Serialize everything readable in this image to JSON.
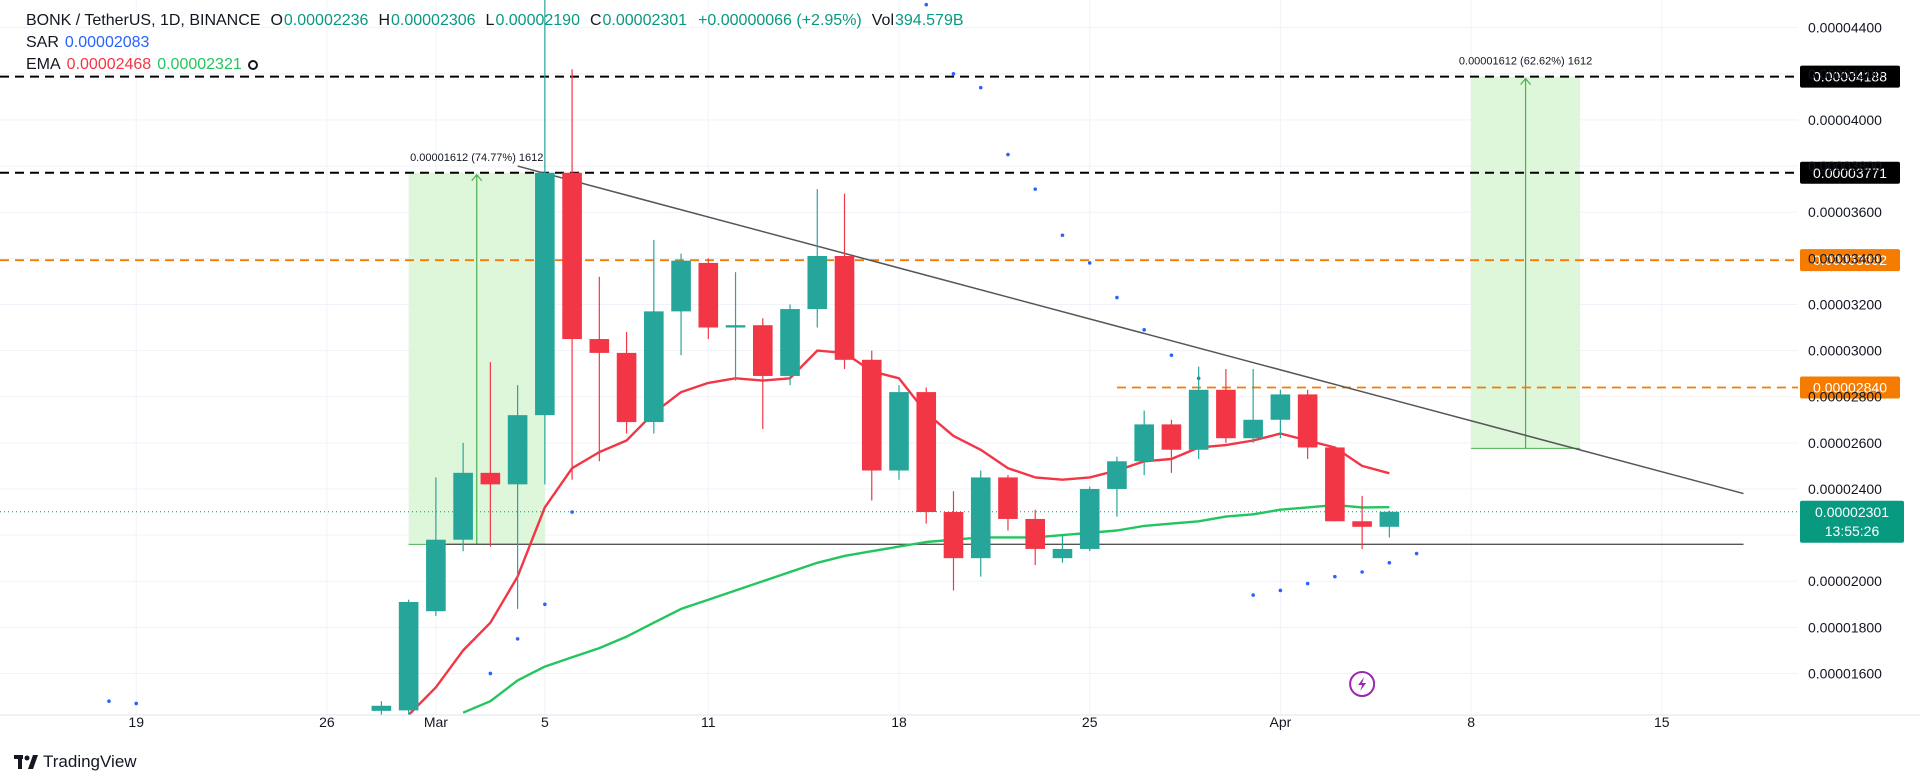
{
  "header": {
    "symbol": "BONK / TetherUS, 1D, BINANCE",
    "open_label": "O",
    "open": "0.00002236",
    "high_label": "H",
    "high": "0.00002306",
    "low_label": "L",
    "low": "0.00002190",
    "close_label": "C",
    "close": "0.00002301",
    "change": "+0.00000066 (+2.95%)",
    "vol_label": "Vol",
    "vol": "394.579B",
    "sar_label": "SAR",
    "sar_value": "0.00002083",
    "ema_label": "EMA",
    "ema1": "0.00002468",
    "ema2": "0.00002321"
  },
  "watermark": "TradingView",
  "colors": {
    "up": "#26a69a",
    "up_dark": "#089981",
    "down": "#f23645",
    "ema_fast": "#f23645",
    "ema_slow": "#22c55e",
    "sar": "#2962ff",
    "level_black": "#000000",
    "level_orange": "#f57c00",
    "range_fill": "#d8f5d3",
    "range_line": "#4caf50",
    "trendline": "#555555"
  },
  "chart_data": {
    "type": "candlestick",
    "y_range": [
      1.42e-05,
      4.52e-05
    ],
    "y_ticks": [
      "0.00001600",
      "0.00001800",
      "0.00002000",
      "0.00002200",
      "0.00002400",
      "0.00002600",
      "0.00002800",
      "0.00003000",
      "0.00003200",
      "0.00003400",
      "0.00003600",
      "0.00003800",
      "0.00004000",
      "0.00004200",
      "0.00004400"
    ],
    "x_range": [
      "2024-02-14",
      "2024-04-20"
    ],
    "x_ticks": [
      {
        "date": "2024-02-19",
        "label": "19"
      },
      {
        "date": "2024-02-26",
        "label": "26"
      },
      {
        "date": "2024-03-01",
        "label": "Mar"
      },
      {
        "date": "2024-03-05",
        "label": "5"
      },
      {
        "date": "2024-03-11",
        "label": "11"
      },
      {
        "date": "2024-03-18",
        "label": "18"
      },
      {
        "date": "2024-03-25",
        "label": "25"
      },
      {
        "date": "2024-04-01",
        "label": "Apr"
      },
      {
        "date": "2024-04-08",
        "label": "8"
      },
      {
        "date": "2024-04-15",
        "label": "15"
      }
    ],
    "candles": [
      {
        "d": "2024-02-28",
        "o": 1.438e-05,
        "h": 1.48e-05,
        "l": 1.42e-05,
        "c": 1.46e-05
      },
      {
        "d": "2024-02-29",
        "o": 1.44e-05,
        "h": 1.92e-05,
        "l": 1.42e-05,
        "c": 1.91e-05
      },
      {
        "d": "2024-03-01",
        "o": 1.87e-05,
        "h": 2.45e-05,
        "l": 1.85e-05,
        "c": 2.18e-05
      },
      {
        "d": "2024-03-02",
        "o": 2.18e-05,
        "h": 2.6e-05,
        "l": 2.13e-05,
        "c": 2.47e-05
      },
      {
        "d": "2024-03-03",
        "o": 2.47e-05,
        "h": 2.95e-05,
        "l": 2.15e-05,
        "c": 2.42e-05
      },
      {
        "d": "2024-03-04",
        "o": 2.42e-05,
        "h": 2.85e-05,
        "l": 1.88e-05,
        "c": 2.72e-05
      },
      {
        "d": "2024-03-05",
        "o": 2.72e-05,
        "h": 4.54e-05,
        "l": 2.42e-05,
        "c": 3.771e-05
      },
      {
        "d": "2024-03-06",
        "o": 3.771e-05,
        "h": 4.22e-05,
        "l": 2.44e-05,
        "c": 3.05e-05
      },
      {
        "d": "2024-03-07",
        "o": 3.05e-05,
        "h": 3.32e-05,
        "l": 2.52e-05,
        "c": 2.99e-05
      },
      {
        "d": "2024-03-08",
        "o": 2.99e-05,
        "h": 3.08e-05,
        "l": 2.64e-05,
        "c": 2.69e-05
      },
      {
        "d": "2024-03-09",
        "o": 2.69e-05,
        "h": 3.48e-05,
        "l": 2.64e-05,
        "c": 3.17e-05
      },
      {
        "d": "2024-03-10",
        "o": 3.17e-05,
        "h": 3.42e-05,
        "l": 2.98e-05,
        "c": 3.39e-05
      },
      {
        "d": "2024-03-11",
        "o": 3.38e-05,
        "h": 3.4e-05,
        "l": 3.05e-05,
        "c": 3.1e-05
      },
      {
        "d": "2024-03-12",
        "o": 3.1e-05,
        "h": 3.34e-05,
        "l": 2.87e-05,
        "c": 3.11e-05
      },
      {
        "d": "2024-03-13",
        "o": 3.11e-05,
        "h": 3.14e-05,
        "l": 2.66e-05,
        "c": 2.89e-05
      },
      {
        "d": "2024-03-14",
        "o": 2.89e-05,
        "h": 3.2e-05,
        "l": 2.85e-05,
        "c": 3.18e-05
      },
      {
        "d": "2024-03-15",
        "o": 3.18e-05,
        "h": 3.7e-05,
        "l": 3.1e-05,
        "c": 3.41e-05
      },
      {
        "d": "2024-03-16",
        "o": 3.41e-05,
        "h": 3.68e-05,
        "l": 2.92e-05,
        "c": 2.96e-05
      },
      {
        "d": "2024-03-17",
        "o": 2.96e-05,
        "h": 3e-05,
        "l": 2.35e-05,
        "c": 2.48e-05
      },
      {
        "d": "2024-03-18",
        "o": 2.48e-05,
        "h": 2.85e-05,
        "l": 2.44e-05,
        "c": 2.82e-05
      },
      {
        "d": "2024-03-19",
        "o": 2.82e-05,
        "h": 2.84e-05,
        "l": 2.25e-05,
        "c": 2.3e-05
      },
      {
        "d": "2024-03-20",
        "o": 2.3e-05,
        "h": 2.39e-05,
        "l": 1.96e-05,
        "c": 2.1e-05
      },
      {
        "d": "2024-03-21",
        "o": 2.1e-05,
        "h": 2.48e-05,
        "l": 2.02e-05,
        "c": 2.45e-05
      },
      {
        "d": "2024-03-22",
        "o": 2.45e-05,
        "h": 2.46e-05,
        "l": 2.22e-05,
        "c": 2.27e-05
      },
      {
        "d": "2024-03-23",
        "o": 2.27e-05,
        "h": 2.31e-05,
        "l": 2.07e-05,
        "c": 2.14e-05
      },
      {
        "d": "2024-03-24",
        "o": 2.1e-05,
        "h": 2.2e-05,
        "l": 2.08e-05,
        "c": 2.14e-05
      },
      {
        "d": "2024-03-25",
        "o": 2.14e-05,
        "h": 2.41e-05,
        "l": 2.13e-05,
        "c": 2.4e-05
      },
      {
        "d": "2024-03-26",
        "o": 2.4e-05,
        "h": 2.54e-05,
        "l": 2.28e-05,
        "c": 2.52e-05
      },
      {
        "d": "2024-03-27",
        "o": 2.52e-05,
        "h": 2.74e-05,
        "l": 2.46e-05,
        "c": 2.68e-05
      },
      {
        "d": "2024-03-28",
        "o": 2.68e-05,
        "h": 2.7e-05,
        "l": 2.47e-05,
        "c": 2.57e-05
      },
      {
        "d": "2024-03-29",
        "o": 2.57e-05,
        "h": 2.93e-05,
        "l": 2.53e-05,
        "c": 2.83e-05
      },
      {
        "d": "2024-03-30",
        "o": 2.83e-05,
        "h": 2.92e-05,
        "l": 2.6e-05,
        "c": 2.62e-05
      },
      {
        "d": "2024-03-31",
        "o": 2.62e-05,
        "h": 2.92e-05,
        "l": 2.6e-05,
        "c": 2.7e-05
      },
      {
        "d": "2024-04-01",
        "o": 2.7e-05,
        "h": 2.83e-05,
        "l": 2.62e-05,
        "c": 2.81e-05
      },
      {
        "d": "2024-04-02",
        "o": 2.81e-05,
        "h": 2.83e-05,
        "l": 2.53e-05,
        "c": 2.58e-05
      },
      {
        "d": "2024-04-03",
        "o": 2.58e-05,
        "h": 2.57e-05,
        "l": 2.26e-05,
        "c": 2.26e-05
      },
      {
        "d": "2024-04-04",
        "o": 2.26e-05,
        "h": 2.37e-05,
        "l": 2.14e-05,
        "c": 2.236e-05
      },
      {
        "d": "2024-04-05",
        "o": 2.236e-05,
        "h": 2.306e-05,
        "l": 2.19e-05,
        "c": 2.301e-05
      }
    ],
    "ema_fast": [
      {
        "d": "2024-02-29",
        "v": 1.42e-05
      },
      {
        "d": "2024-03-01",
        "v": 1.54e-05
      },
      {
        "d": "2024-03-02",
        "v": 1.7e-05
      },
      {
        "d": "2024-03-03",
        "v": 1.82e-05
      },
      {
        "d": "2024-03-04",
        "v": 2.02e-05
      },
      {
        "d": "2024-03-05",
        "v": 2.32e-05
      },
      {
        "d": "2024-03-06",
        "v": 2.49e-05
      },
      {
        "d": "2024-03-07",
        "v": 2.56e-05
      },
      {
        "d": "2024-03-08",
        "v": 2.61e-05
      },
      {
        "d": "2024-03-09",
        "v": 2.73e-05
      },
      {
        "d": "2024-03-10",
        "v": 2.82e-05
      },
      {
        "d": "2024-03-11",
        "v": 2.86e-05
      },
      {
        "d": "2024-03-12",
        "v": 2.88e-05
      },
      {
        "d": "2024-03-13",
        "v": 2.87e-05
      },
      {
        "d": "2024-03-14",
        "v": 2.88e-05
      },
      {
        "d": "2024-03-15",
        "v": 3e-05
      },
      {
        "d": "2024-03-16",
        "v": 2.99e-05
      },
      {
        "d": "2024-03-17",
        "v": 2.91e-05
      },
      {
        "d": "2024-03-18",
        "v": 2.88e-05
      },
      {
        "d": "2024-03-19",
        "v": 2.73e-05
      },
      {
        "d": "2024-03-20",
        "v": 2.63e-05
      },
      {
        "d": "2024-03-21",
        "v": 2.57e-05
      },
      {
        "d": "2024-03-22",
        "v": 2.49e-05
      },
      {
        "d": "2024-03-23",
        "v": 2.45e-05
      },
      {
        "d": "2024-03-24",
        "v": 2.44e-05
      },
      {
        "d": "2024-03-25",
        "v": 2.45e-05
      },
      {
        "d": "2024-03-26",
        "v": 2.48e-05
      },
      {
        "d": "2024-03-27",
        "v": 2.52e-05
      },
      {
        "d": "2024-03-28",
        "v": 2.53e-05
      },
      {
        "d": "2024-03-29",
        "v": 2.58e-05
      },
      {
        "d": "2024-03-30",
        "v": 2.59e-05
      },
      {
        "d": "2024-03-31",
        "v": 2.61e-05
      },
      {
        "d": "2024-04-01",
        "v": 2.64e-05
      },
      {
        "d": "2024-04-02",
        "v": 2.61e-05
      },
      {
        "d": "2024-04-03",
        "v": 2.58e-05
      },
      {
        "d": "2024-04-04",
        "v": 2.5e-05
      },
      {
        "d": "2024-04-05",
        "v": 2.468e-05
      }
    ],
    "ema_slow": [
      {
        "d": "2024-03-02",
        "v": 1.43e-05
      },
      {
        "d": "2024-03-03",
        "v": 1.48e-05
      },
      {
        "d": "2024-03-04",
        "v": 1.57e-05
      },
      {
        "d": "2024-03-05",
        "v": 1.63e-05
      },
      {
        "d": "2024-03-06",
        "v": 1.67e-05
      },
      {
        "d": "2024-03-07",
        "v": 1.71e-05
      },
      {
        "d": "2024-03-08",
        "v": 1.76e-05
      },
      {
        "d": "2024-03-09",
        "v": 1.82e-05
      },
      {
        "d": "2024-03-10",
        "v": 1.88e-05
      },
      {
        "d": "2024-03-11",
        "v": 1.92e-05
      },
      {
        "d": "2024-03-12",
        "v": 1.96e-05
      },
      {
        "d": "2024-03-13",
        "v": 2e-05
      },
      {
        "d": "2024-03-14",
        "v": 2.04e-05
      },
      {
        "d": "2024-03-15",
        "v": 2.08e-05
      },
      {
        "d": "2024-03-16",
        "v": 2.11e-05
      },
      {
        "d": "2024-03-17",
        "v": 2.13e-05
      },
      {
        "d": "2024-03-18",
        "v": 2.15e-05
      },
      {
        "d": "2024-03-19",
        "v": 2.17e-05
      },
      {
        "d": "2024-03-20",
        "v": 2.18e-05
      },
      {
        "d": "2024-03-21",
        "v": 2.19e-05
      },
      {
        "d": "2024-03-22",
        "v": 2.19e-05
      },
      {
        "d": "2024-03-23",
        "v": 2.19e-05
      },
      {
        "d": "2024-03-24",
        "v": 2.2e-05
      },
      {
        "d": "2024-03-25",
        "v": 2.21e-05
      },
      {
        "d": "2024-03-26",
        "v": 2.22e-05
      },
      {
        "d": "2024-03-27",
        "v": 2.24e-05
      },
      {
        "d": "2024-03-28",
        "v": 2.25e-05
      },
      {
        "d": "2024-03-29",
        "v": 2.26e-05
      },
      {
        "d": "2024-03-30",
        "v": 2.28e-05
      },
      {
        "d": "2024-03-31",
        "v": 2.29e-05
      },
      {
        "d": "2024-04-01",
        "v": 2.31e-05
      },
      {
        "d": "2024-04-02",
        "v": 2.32e-05
      },
      {
        "d": "2024-04-03",
        "v": 2.33e-05
      },
      {
        "d": "2024-04-04",
        "v": 2.32e-05
      },
      {
        "d": "2024-04-05",
        "v": 2.321e-05
      }
    ],
    "sar": [
      {
        "d": "2024-02-18",
        "v": 1.48e-05
      },
      {
        "d": "2024-02-19",
        "v": 1.47e-05
      },
      {
        "d": "2024-03-03",
        "v": 1.6e-05
      },
      {
        "d": "2024-03-04",
        "v": 1.75e-05
      },
      {
        "d": "2024-03-05",
        "v": 1.9e-05
      },
      {
        "d": "2024-03-06",
        "v": 2.3e-05
      },
      {
        "d": "2024-03-18",
        "v": 4.56e-05
      },
      {
        "d": "2024-03-19",
        "v": 4.5e-05
      },
      {
        "d": "2024-03-20",
        "v": 4.2e-05
      },
      {
        "d": "2024-03-21",
        "v": 4.14e-05
      },
      {
        "d": "2024-03-22",
        "v": 3.85e-05
      },
      {
        "d": "2024-03-23",
        "v": 3.7e-05
      },
      {
        "d": "2024-03-24",
        "v": 3.5e-05
      },
      {
        "d": "2024-03-25",
        "v": 3.38e-05
      },
      {
        "d": "2024-03-26",
        "v": 3.23e-05
      },
      {
        "d": "2024-03-27",
        "v": 3.09e-05
      },
      {
        "d": "2024-03-28",
        "v": 2.98e-05
      },
      {
        "d": "2024-03-29",
        "v": 2.88e-05
      },
      {
        "d": "2024-03-31",
        "v": 1.94e-05
      },
      {
        "d": "2024-04-01",
        "v": 1.96e-05
      },
      {
        "d": "2024-04-02",
        "v": 1.99e-05
      },
      {
        "d": "2024-04-03",
        "v": 2.02e-05
      },
      {
        "d": "2024-04-04",
        "v": 2.04e-05
      },
      {
        "d": "2024-04-05",
        "v": 2.08e-05
      },
      {
        "d": "2024-04-06",
        "v": 2.12e-05
      }
    ],
    "levels": [
      {
        "value": 4.188e-05,
        "label": "0.00004188",
        "style": "black"
      },
      {
        "value": 3.771e-05,
        "label": "0.00003771",
        "style": "black"
      },
      {
        "value": 3.392e-05,
        "label": "0.00003392",
        "style": "orange"
      },
      {
        "value": 2.84e-05,
        "label": "0.00002840",
        "style": "orange",
        "start": "2024-03-26"
      }
    ],
    "support_line": {
      "value": 2.16e-05,
      "start": "2024-03-01",
      "end": "2024-04-18"
    },
    "trendline": {
      "start": {
        "d": "2024-03-04",
        "v": 3.8e-05
      },
      "end": {
        "d": "2024-04-18",
        "v": 2.38e-05
      }
    },
    "ranges": [
      {
        "start": "2024-02-29",
        "end": "2024-03-05",
        "from": 2.16e-05,
        "to": 3.771e-05,
        "label": "0.00001612 (74.77%) 1612"
      },
      {
        "start": "2024-04-08",
        "end": "2024-04-12",
        "from": 2.576e-05,
        "to": 4.188e-05,
        "label": "0.00001612 (62.62%) 1612"
      }
    ],
    "last_price": {
      "value": 2.301e-05,
      "label": "0.00002301",
      "countdown": "13:55:26"
    }
  }
}
